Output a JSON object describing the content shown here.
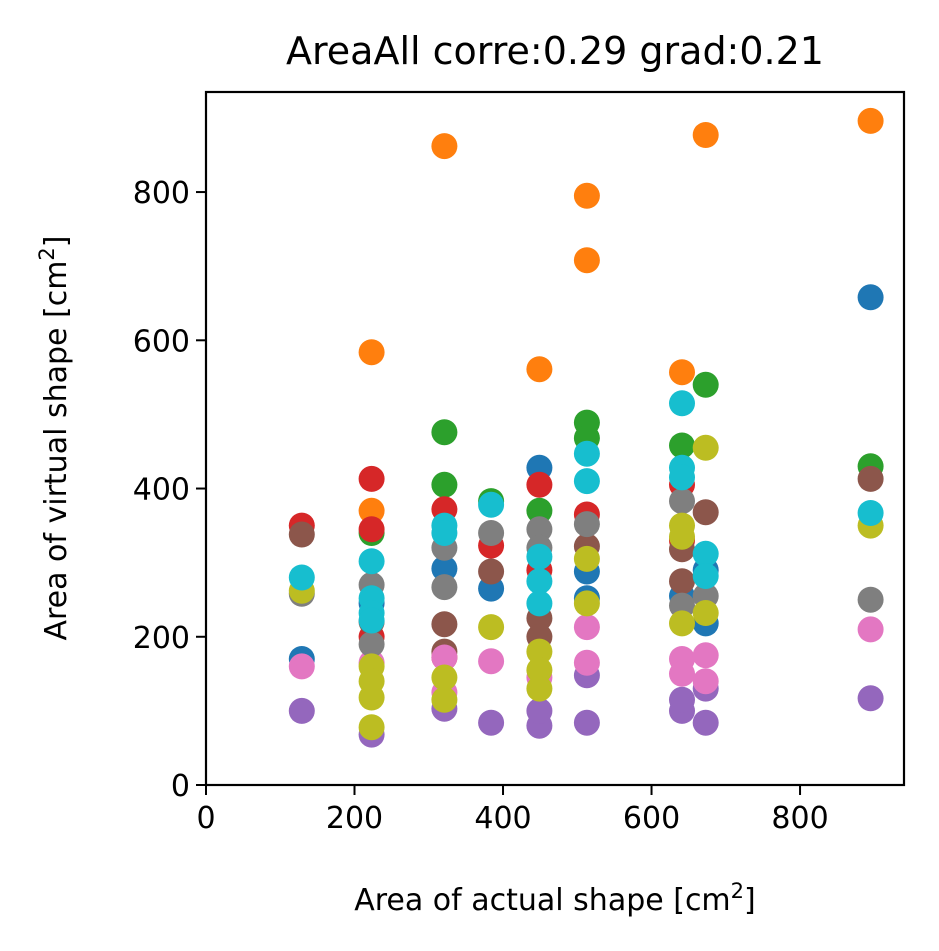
{
  "chart_data": {
    "type": "scatter",
    "title": "AreaAll corre:0.29 grad:0.21",
    "xlabel_main": "Area of actual shape [cm",
    "xlabel_sup": "2",
    "xlabel_end": "]",
    "ylabel_main": "Area of virtual shape [cm",
    "ylabel_sup": "2",
    "ylabel_end": "]",
    "xlim": [
      0,
      940
    ],
    "ylim": [
      0,
      935
    ],
    "xticks": [
      0,
      200,
      400,
      600,
      800
    ],
    "yticks": [
      0,
      200,
      400,
      600,
      800
    ],
    "grid": false,
    "legend": "none",
    "series": [
      {
        "color": "#1f77b4",
        "points": [
          [
            129,
            170
          ],
          [
            223,
            245
          ],
          [
            321,
            292
          ],
          [
            384,
            265
          ],
          [
            449,
            428
          ],
          [
            513,
            288
          ],
          [
            513,
            252
          ],
          [
            641,
            255
          ],
          [
            673,
            218
          ],
          [
            673,
            290
          ],
          [
            895,
            658
          ]
        ]
      },
      {
        "color": "#ff7f0e",
        "points": [
          [
            223,
            584
          ],
          [
            223,
            370
          ],
          [
            321,
            862
          ],
          [
            449,
            561
          ],
          [
            513,
            795
          ],
          [
            513,
            708
          ],
          [
            641,
            557
          ],
          [
            673,
            877
          ],
          [
            895,
            896
          ]
        ]
      },
      {
        "color": "#2ca02c",
        "points": [
          [
            223,
            340
          ],
          [
            321,
            476
          ],
          [
            321,
            405
          ],
          [
            384,
            383
          ],
          [
            449,
            370
          ],
          [
            513,
            489
          ],
          [
            513,
            468
          ],
          [
            641,
            458
          ],
          [
            673,
            540
          ],
          [
            895,
            430
          ]
        ]
      },
      {
        "color": "#d62728",
        "points": [
          [
            129,
            350
          ],
          [
            223,
            413
          ],
          [
            223,
            345
          ],
          [
            223,
            200
          ],
          [
            321,
            372
          ],
          [
            321,
            172
          ],
          [
            384,
            323
          ],
          [
            449,
            405
          ],
          [
            449,
            290
          ],
          [
            513,
            365
          ],
          [
            641,
            405
          ],
          [
            641,
            330
          ]
        ]
      },
      {
        "color": "#9467bd",
        "points": [
          [
            129,
            100
          ],
          [
            223,
            68
          ],
          [
            321,
            103
          ],
          [
            384,
            84
          ],
          [
            449,
            80
          ],
          [
            449,
            100
          ],
          [
            513,
            84
          ],
          [
            513,
            148
          ],
          [
            641,
            100
          ],
          [
            641,
            115
          ],
          [
            673,
            84
          ],
          [
            673,
            130
          ],
          [
            895,
            117
          ]
        ]
      },
      {
        "color": "#8c564b",
        "points": [
          [
            129,
            338
          ],
          [
            223,
            220
          ],
          [
            321,
            217
          ],
          [
            321,
            180
          ],
          [
            384,
            288
          ],
          [
            449,
            225
          ],
          [
            449,
            200
          ],
          [
            513,
            322
          ],
          [
            641,
            318
          ],
          [
            641,
            275
          ],
          [
            673,
            368
          ],
          [
            895,
            413
          ]
        ]
      },
      {
        "color": "#e377c2",
        "points": [
          [
            129,
            160
          ],
          [
            223,
            165
          ],
          [
            321,
            172
          ],
          [
            321,
            125
          ],
          [
            384,
            167
          ],
          [
            449,
            145
          ],
          [
            513,
            213
          ],
          [
            513,
            165
          ],
          [
            641,
            170
          ],
          [
            641,
            150
          ],
          [
            673,
            175
          ],
          [
            673,
            140
          ],
          [
            895,
            210
          ]
        ]
      },
      {
        "color": "#7f7f7f",
        "points": [
          [
            129,
            258
          ],
          [
            223,
            270
          ],
          [
            223,
            190
          ],
          [
            321,
            320
          ],
          [
            321,
            267
          ],
          [
            384,
            340
          ],
          [
            449,
            345
          ],
          [
            449,
            320
          ],
          [
            513,
            352
          ],
          [
            641,
            383
          ],
          [
            641,
            242
          ],
          [
            673,
            255
          ],
          [
            895,
            250
          ]
        ]
      },
      {
        "color": "#bcbd22",
        "points": [
          [
            129,
            262
          ],
          [
            223,
            160
          ],
          [
            223,
            140
          ],
          [
            223,
            118
          ],
          [
            223,
            78
          ],
          [
            321,
            145
          ],
          [
            321,
            115
          ],
          [
            384,
            213
          ],
          [
            449,
            180
          ],
          [
            449,
            155
          ],
          [
            449,
            130
          ],
          [
            513,
            305
          ],
          [
            513,
            245
          ],
          [
            641,
            350
          ],
          [
            641,
            335
          ],
          [
            641,
            218
          ],
          [
            673,
            455
          ],
          [
            673,
            232
          ],
          [
            895,
            350
          ]
        ]
      },
      {
        "color": "#17becf",
        "points": [
          [
            129,
            280
          ],
          [
            223,
            302
          ],
          [
            223,
            252
          ],
          [
            223,
            232
          ],
          [
            223,
            222
          ],
          [
            321,
            350
          ],
          [
            321,
            340
          ],
          [
            384,
            378
          ],
          [
            449,
            308
          ],
          [
            449,
            275
          ],
          [
            449,
            245
          ],
          [
            513,
            447
          ],
          [
            513,
            410
          ],
          [
            641,
            515
          ],
          [
            641,
            428
          ],
          [
            641,
            415
          ],
          [
            673,
            312
          ],
          [
            673,
            282
          ],
          [
            895,
            367
          ]
        ]
      }
    ]
  }
}
